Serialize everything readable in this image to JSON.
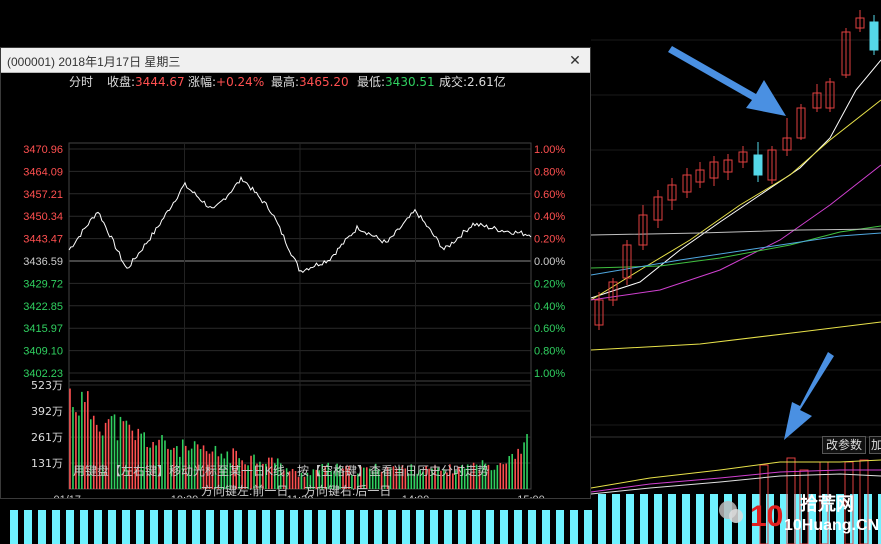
{
  "dialog": {
    "title": "(000001) 2018年1月17日 星期三",
    "close_label": "✕",
    "close_icon": "close-icon"
  },
  "info_bar": [
    {
      "label": "分时",
      "value": ""
    },
    {
      "label": "收盘:",
      "value": "3444.67"
    },
    {
      "label": "涨幅:",
      "value": "+0.24%"
    },
    {
      "label": "最高:",
      "value": "3465.20"
    },
    {
      "label": "最低:",
      "value": "3430.51"
    },
    {
      "label": "成交:",
      "value": "2.61亿"
    }
  ],
  "price_ticks_left": [
    "3470.96",
    "3464.09",
    "3457.21",
    "3450.34",
    "3443.47",
    "3436.59",
    "3429.72",
    "3422.85",
    "3415.97",
    "3409.10",
    "3402.23"
  ],
  "pct_ticks_right": [
    "1.00%",
    "0.80%",
    "0.60%",
    "0.40%",
    "0.20%",
    "0.00%",
    "0.20%",
    "0.40%",
    "0.60%",
    "0.80%",
    "1.00%"
  ],
  "volume_ticks": [
    "523万",
    "392万",
    "261万",
    "131万"
  ],
  "time_ticks": [
    "01/17",
    "10:30",
    "11:30",
    "14:00",
    "15:00"
  ],
  "hints": {
    "line1": "用键盘【左右键】移动光标至某一日K线，按【空格键】查看当日历史分时走势",
    "line2_left": "方向键左:前一日",
    "line2_right": "方向键右:后一日"
  },
  "side_buttons": {
    "params": "改参数",
    "add": "加"
  },
  "watermark": {
    "text": "拾荒网",
    "domain": "10Huang.CN",
    "number": "10",
    "icon": "wechat-icon"
  },
  "colors": {
    "up": "#ff5050",
    "down": "#30d060",
    "price_line": "#ffffff",
    "candle_up": "#e04040",
    "candle_down": "#55d8e8",
    "arrow": "#4a90e2",
    "popup_bg": "#000000",
    "titlebar_bg": "#f0f0f0"
  },
  "chart_data": {
    "type": "line",
    "x": [
      "09:30",
      "09:45",
      "10:00",
      "10:15",
      "10:30",
      "10:45",
      "11:00",
      "11:15",
      "11:30",
      "13:15",
      "13:30",
      "13:45",
      "14:00",
      "14:15",
      "14:30",
      "14:45",
      "15:00"
    ],
    "series": [
      {
        "values": [
          3440.0,
          3452.0,
          3434.0,
          3446.0,
          3460.0,
          3452.0,
          3462.0,
          3452.0,
          3433.5,
          3437.0,
          3447.0,
          3442.0,
          3452.0,
          3440.0,
          3448.0,
          3446.0,
          3444.67
        ]
      }
    ],
    "volume": [
      470,
      360,
      290,
      230,
      200,
      180,
      160,
      150,
      70,
      110,
      90,
      110,
      100,
      95,
      110,
      130,
      230
    ],
    "ylim": [
      3402.23,
      3470.96
    ],
    "volume_max": 523,
    "prev_close": 3436.59
  }
}
